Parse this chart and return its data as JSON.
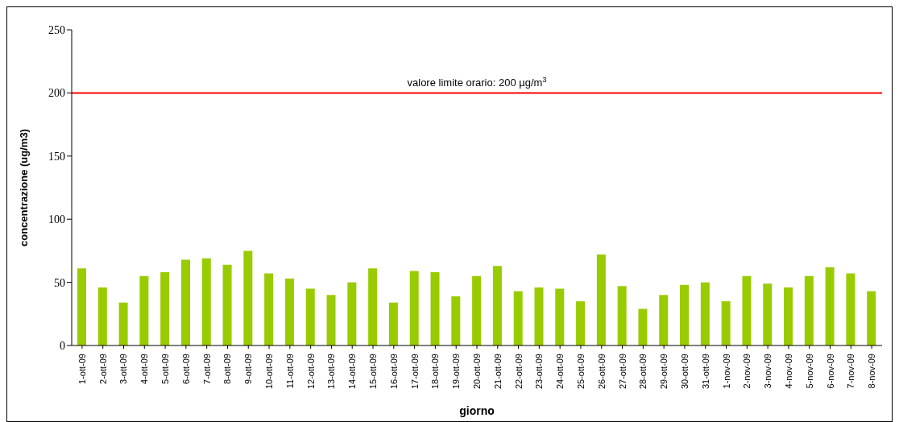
{
  "chart_data": {
    "type": "bar",
    "xlabel": "giorno",
    "ylabel": "concentrazione (ug/m3)",
    "categories": [
      "1-ott-09",
      "2-ott-09",
      "3-ott-09",
      "4-ott-09",
      "5-ott-09",
      "6-ott-09",
      "7-ott-09",
      "8-ott-09",
      "9-ott-09",
      "10-ott-09",
      "11-ott-09",
      "12-ott-09",
      "13-ott-09",
      "14-ott-09",
      "15-ott-09",
      "16-ott-09",
      "17-ott-09",
      "18-ott-09",
      "19-ott-09",
      "20-ott-09",
      "21-ott-09",
      "22-ott-09",
      "23-ott-09",
      "24-ott-09",
      "25-ott-09",
      "26-ott-09",
      "27-ott-09",
      "28-ott-09",
      "29-ott-09",
      "30-ott-09",
      "31-ott-09",
      "1-nov-09",
      "2-nov-09",
      "3-nov-09",
      "4-nov-09",
      "5-nov-09",
      "6-nov-09",
      "7-nov-09",
      "8-nov-09"
    ],
    "values": [
      61,
      46,
      34,
      55,
      58,
      68,
      69,
      64,
      75,
      57,
      53,
      45,
      40,
      50,
      61,
      34,
      59,
      58,
      39,
      55,
      63,
      43,
      46,
      45,
      35,
      72,
      47,
      29,
      40,
      48,
      50,
      35,
      55,
      49,
      46,
      55,
      62,
      57,
      43
    ],
    "color": "#99cc00",
    "ylim": [
      0,
      250
    ],
    "yticks": [
      0,
      50,
      100,
      150,
      200,
      250
    ],
    "grid": false,
    "legend": false,
    "ref_lines": [
      {
        "axis": "y",
        "value": 200,
        "label": "valore limite orario: 200 µg/m$^{3}$",
        "color": "#ff0000"
      }
    ]
  }
}
